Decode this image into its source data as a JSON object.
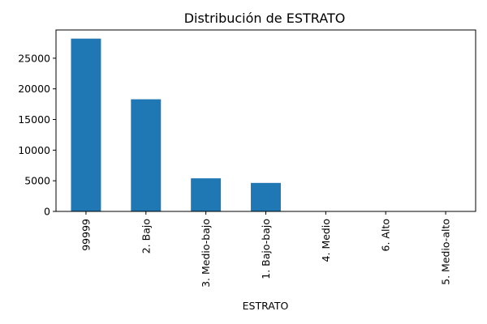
{
  "chart_data": {
    "type": "bar",
    "title": "Distribución de ESTRATO",
    "xlabel": "ESTRATO",
    "ylabel": "",
    "categories": [
      "99999",
      "2. Bajo",
      "3. Medio-bajo",
      "1. Bajo-bajo",
      "4. Medio",
      "6. Alto",
      "5. Medio-alto"
    ],
    "values": [
      28200,
      18300,
      5400,
      4650,
      0,
      0,
      0
    ],
    "ylim": [
      0,
      29610
    ],
    "yticks": [
      0,
      5000,
      10000,
      15000,
      20000,
      25000
    ],
    "bar_color": "#1f77b4",
    "grid": false,
    "legend": "none"
  }
}
